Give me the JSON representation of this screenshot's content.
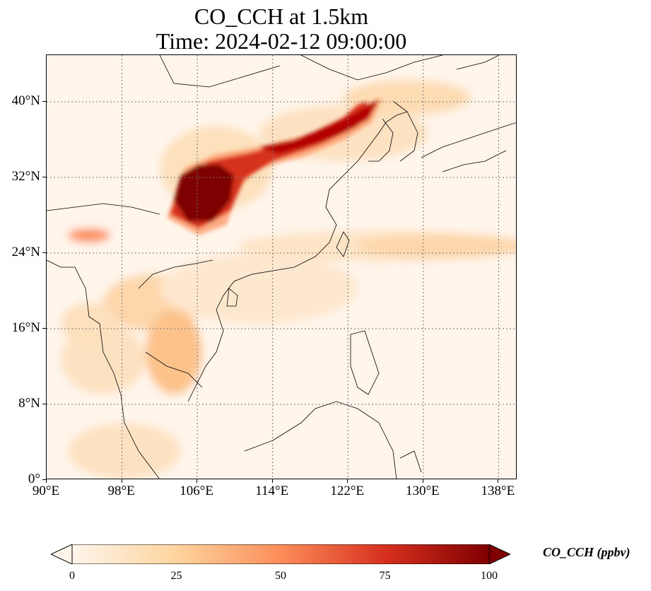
{
  "title": {
    "line1": "CO_CCH at 1.5km",
    "line2": "Time: 2024-02-12 09:00:00"
  },
  "map": {
    "region": "East and Southeast Asia",
    "lon_range": [
      90,
      140
    ],
    "lat_range": [
      0,
      45
    ],
    "gridlines": "dotted",
    "colormap": "OrRd",
    "lat_ticks": [
      "0°",
      "8°N",
      "16°N",
      "24°N",
      "32°N",
      "40°N"
    ],
    "lon_ticks": [
      "90°E",
      "98°E",
      "106°E",
      "114°E",
      "122°E",
      "130°E",
      "138°E"
    ]
  },
  "colorbar": {
    "label": "CO_CCH (ppbv)",
    "min": 0,
    "max": 100,
    "extend": "both",
    "ticks": [
      "0",
      "25",
      "50",
      "75",
      "100"
    ],
    "colors": [
      "#fff5eb",
      "#fdd49e",
      "#fc8d59",
      "#d7301f",
      "#7f0000"
    ]
  }
}
